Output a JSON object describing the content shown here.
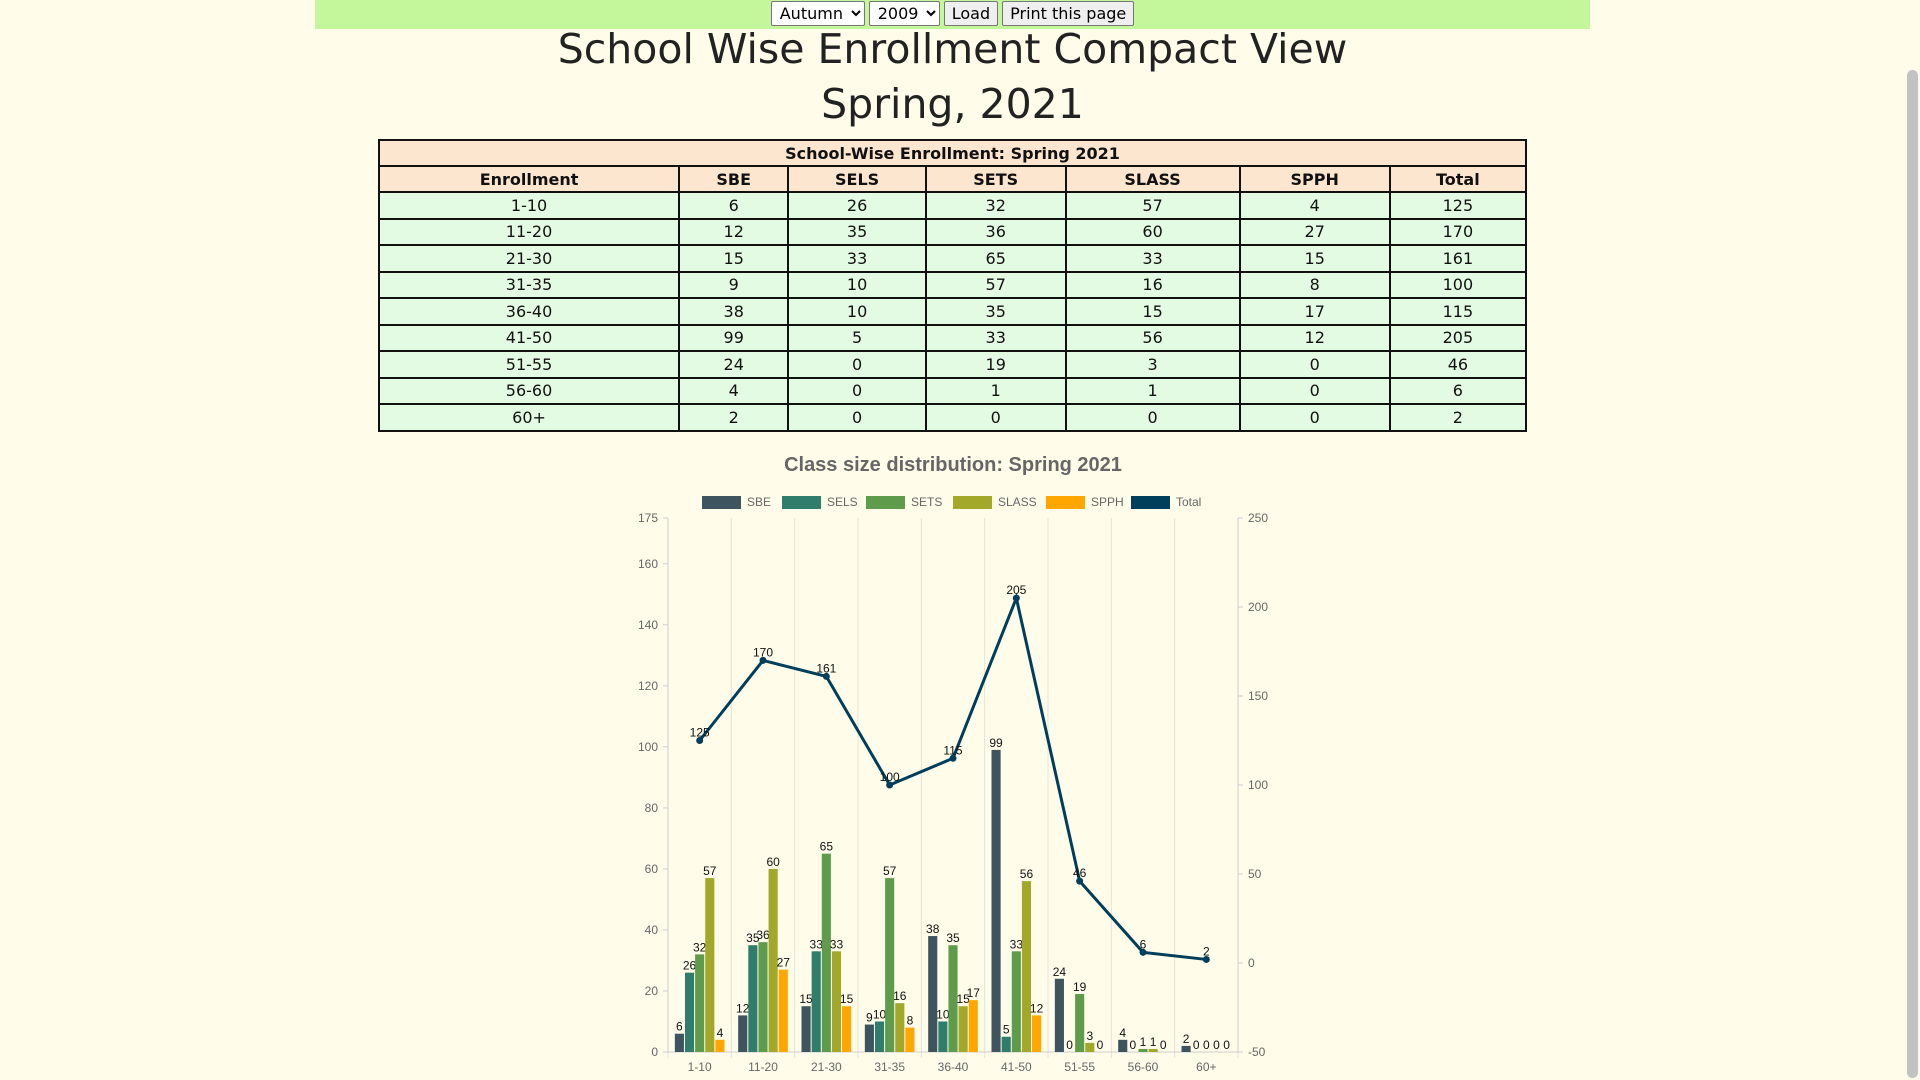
{
  "controls": {
    "term_options": [
      "Autumn"
    ],
    "term_value": "Autumn",
    "year_options": [
      "2009"
    ],
    "year_value": "2009",
    "load_label": "Load",
    "print_label": "Print this page"
  },
  "page": {
    "title": "School Wise Enrollment Compact View",
    "subtitle": "Spring, 2021"
  },
  "table": {
    "caption": "School-Wise Enrollment: Spring 2021",
    "headers": [
      "Enrollment",
      "SBE",
      "SELS",
      "SETS",
      "SLASS",
      "SPPH",
      "Total"
    ],
    "rows": [
      [
        "1-10",
        "6",
        "26",
        "32",
        "57",
        "4",
        "125"
      ],
      [
        "11-20",
        "12",
        "35",
        "36",
        "60",
        "27",
        "170"
      ],
      [
        "21-30",
        "15",
        "33",
        "65",
        "33",
        "15",
        "161"
      ],
      [
        "31-35",
        "9",
        "10",
        "57",
        "16",
        "8",
        "100"
      ],
      [
        "36-40",
        "38",
        "10",
        "35",
        "15",
        "17",
        "115"
      ],
      [
        "41-50",
        "99",
        "5",
        "33",
        "56",
        "12",
        "205"
      ],
      [
        "51-55",
        "24",
        "0",
        "19",
        "3",
        "0",
        "46"
      ],
      [
        "56-60",
        "4",
        "0",
        "1",
        "1",
        "0",
        "6"
      ],
      [
        "60+",
        "2",
        "0",
        "0",
        "0",
        "0",
        "2"
      ]
    ]
  },
  "chart_data": {
    "type": "bar",
    "title": "Class size distribution: Spring 2021",
    "categories": [
      "1-10",
      "11-20",
      "21-30",
      "31-35",
      "36-40",
      "41-50",
      "51-55",
      "56-60",
      "60+"
    ],
    "series": [
      {
        "name": "SBE",
        "type": "bar",
        "axis": "left",
        "color": "#3e5560",
        "values": [
          6,
          12,
          15,
          9,
          38,
          99,
          24,
          4,
          2
        ]
      },
      {
        "name": "SELS",
        "type": "bar",
        "axis": "left",
        "color": "#2f7d6a",
        "values": [
          26,
          35,
          33,
          10,
          10,
          5,
          0,
          0,
          0
        ]
      },
      {
        "name": "SETS",
        "type": "bar",
        "axis": "left",
        "color": "#5e9c4c",
        "values": [
          32,
          36,
          65,
          57,
          35,
          33,
          19,
          1,
          0
        ]
      },
      {
        "name": "SLASS",
        "type": "bar",
        "axis": "left",
        "color": "#a3a82a",
        "values": [
          57,
          60,
          33,
          16,
          15,
          56,
          3,
          1,
          0
        ]
      },
      {
        "name": "SPPH",
        "type": "bar",
        "axis": "left",
        "color": "#ffa600",
        "values": [
          4,
          27,
          15,
          8,
          17,
          12,
          0,
          0,
          0
        ]
      },
      {
        "name": "Total",
        "type": "line",
        "axis": "right",
        "color": "#003f5c",
        "values": [
          125,
          170,
          161,
          100,
          115,
          205,
          46,
          6,
          2
        ]
      }
    ],
    "y_left": {
      "ylim": [
        0,
        175
      ],
      "ticks": [
        0,
        20,
        40,
        60,
        80,
        100,
        120,
        140,
        160,
        175
      ]
    },
    "y_right": {
      "ylim": [
        -50,
        250
      ],
      "ticks": [
        -50,
        0,
        50,
        100,
        150,
        200,
        250
      ]
    },
    "grid": "vertical",
    "legend": "top-center"
  }
}
